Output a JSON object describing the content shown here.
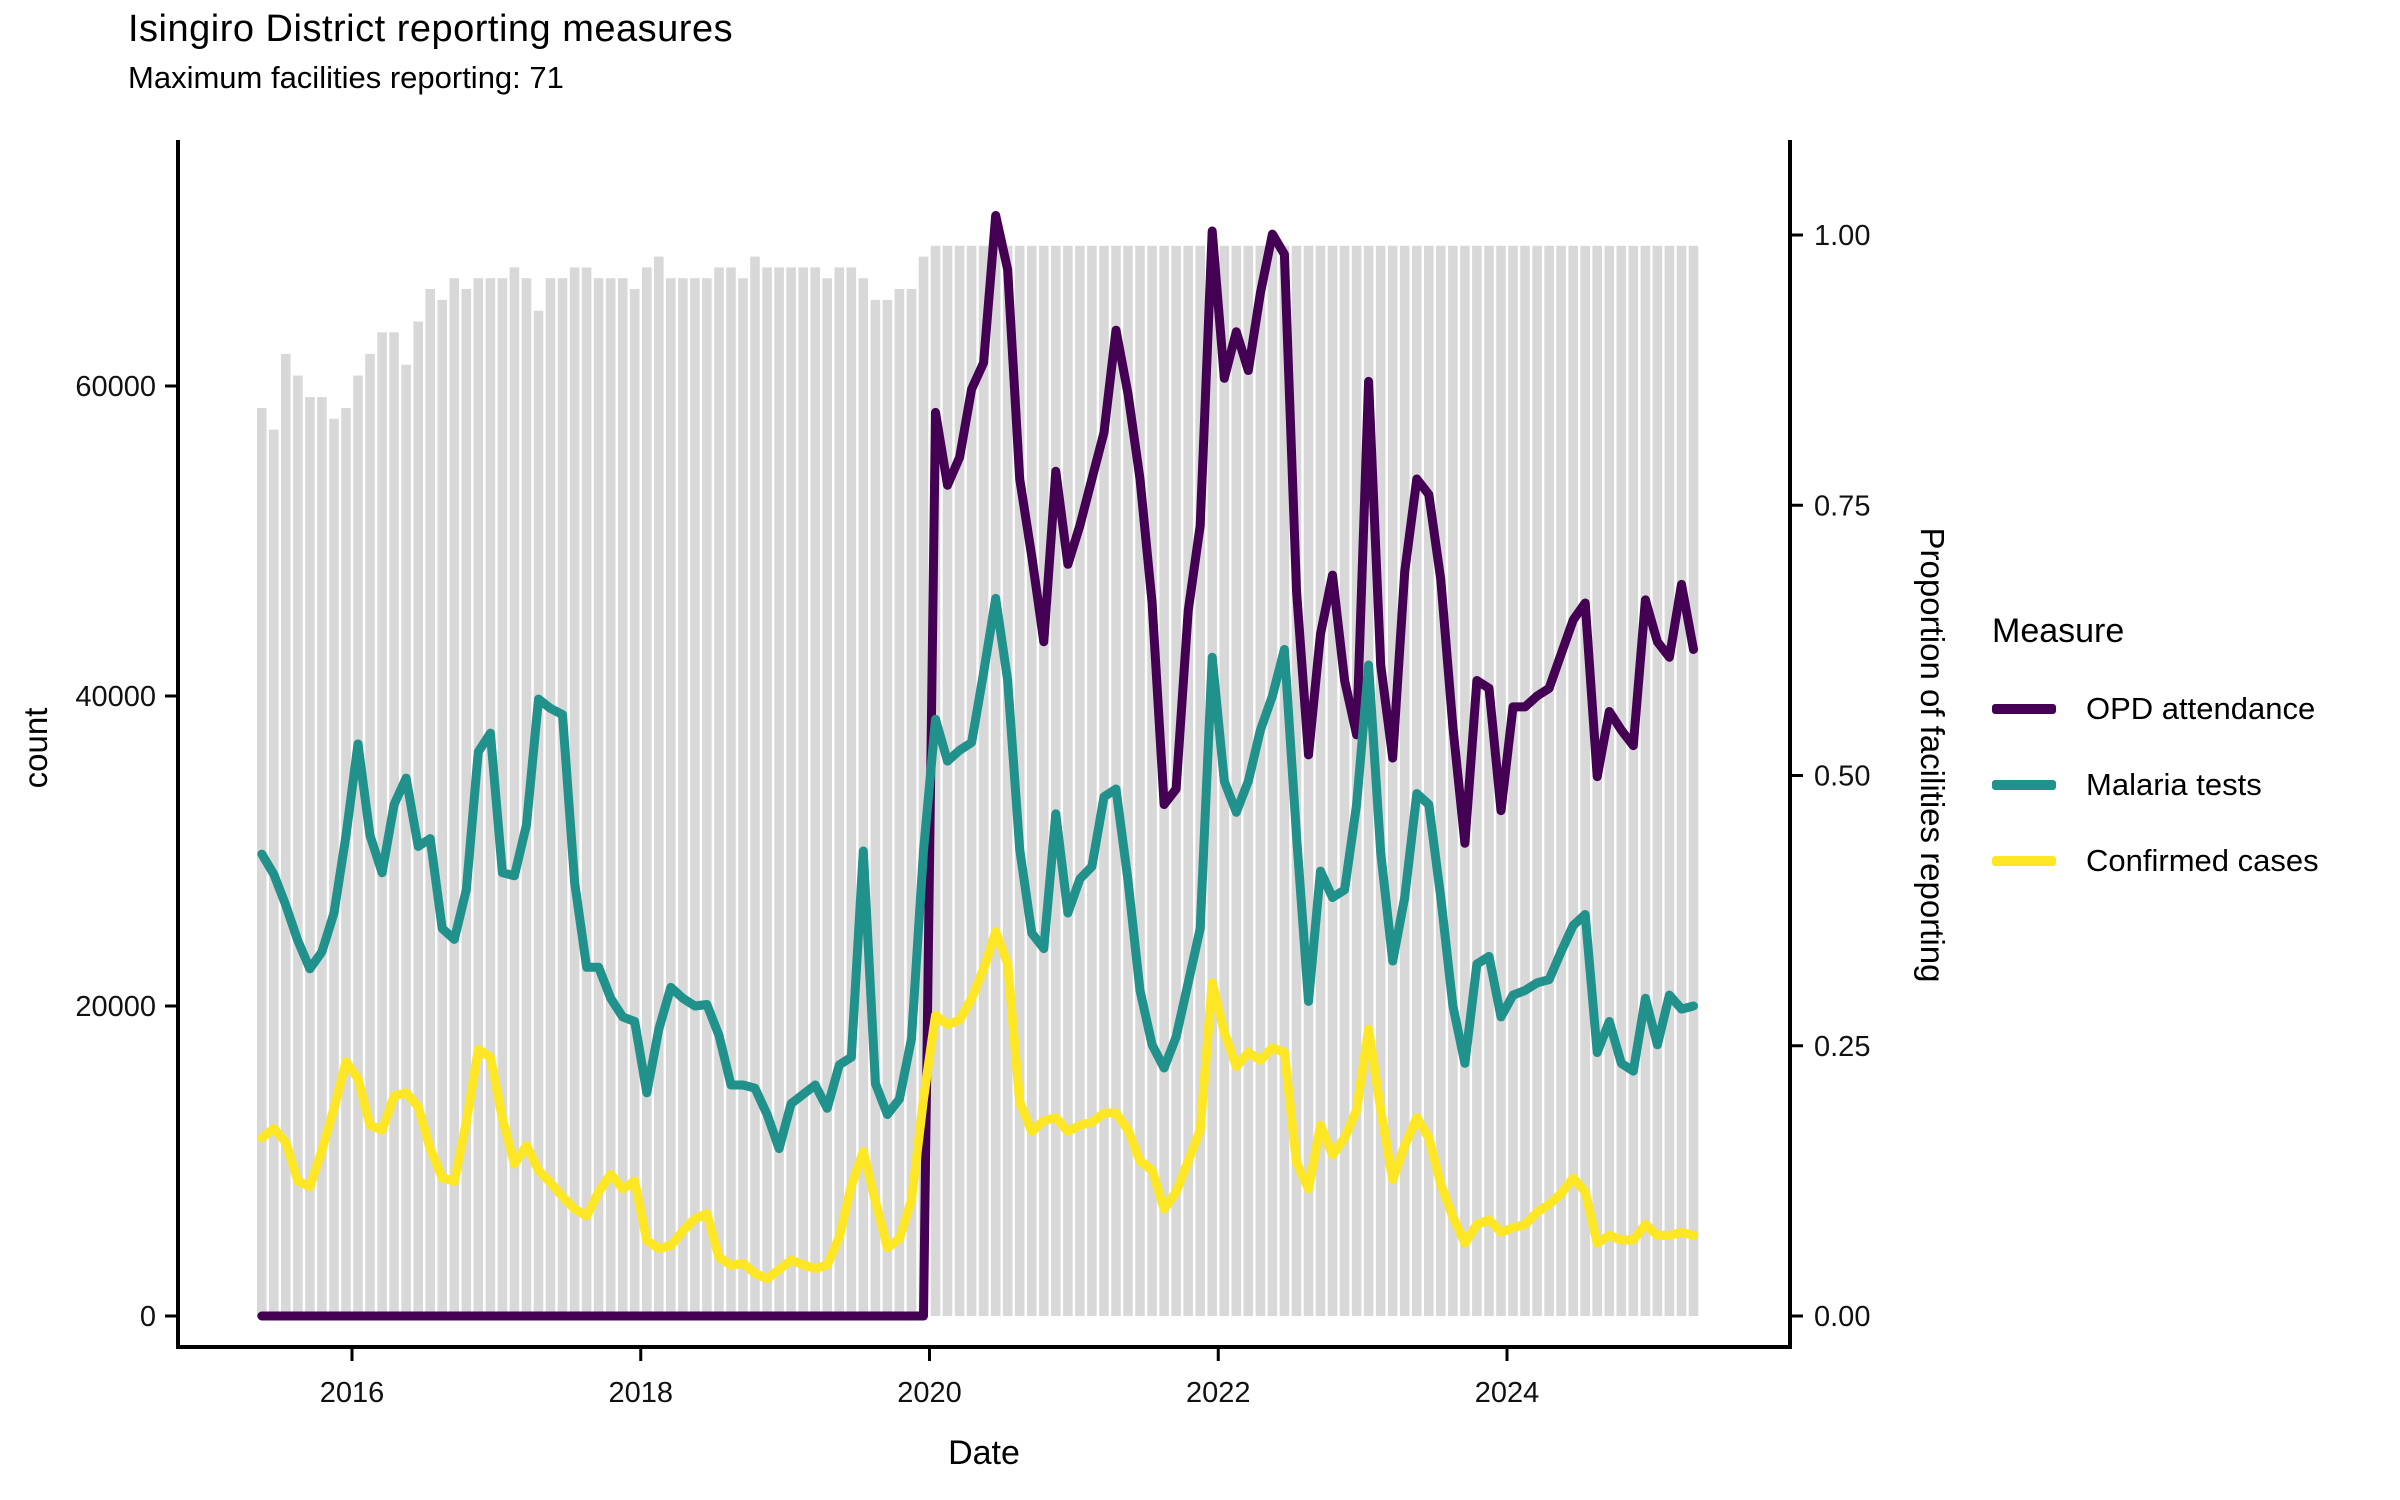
{
  "header": {
    "title": "Isingiro District reporting measures",
    "subtitle": "Maximum facilities reporting: 71"
  },
  "legend": {
    "title": "Measure",
    "items": [
      {
        "label": "OPD attendance",
        "color": "#440154"
      },
      {
        "label": "Malaria tests",
        "color": "#21918c"
      },
      {
        "label": "Confirmed cases",
        "color": "#fde725"
      }
    ]
  },
  "chart_data": {
    "type": "bar+line",
    "title": "Isingiro District reporting measures",
    "subtitle": "Maximum facilities reporting: 71",
    "max_facilities_reporting": 71,
    "xlabel": "Date",
    "ylabel_left": "count",
    "ylabel_right": "Proportion of facilities reporting",
    "x_ticks": [
      "2016",
      "2018",
      "2020",
      "2022",
      "2024"
    ],
    "y_ticks_left": [
      "0",
      "20000",
      "40000",
      "60000"
    ],
    "y_ticks_right": [
      "0.00",
      "0.25",
      "0.50",
      "0.75",
      "1.00"
    ],
    "ylim_left": [
      0,
      71500
    ],
    "ylim_right": [
      0,
      1.0
    ],
    "grid": false,
    "legend_position": "right",
    "months": [
      "2015-05",
      "2015-06",
      "2015-07",
      "2015-08",
      "2015-09",
      "2015-10",
      "2015-11",
      "2015-12",
      "2016-01",
      "2016-02",
      "2016-03",
      "2016-04",
      "2016-05",
      "2016-06",
      "2016-07",
      "2016-08",
      "2016-09",
      "2016-10",
      "2016-11",
      "2016-12",
      "2017-01",
      "2017-02",
      "2017-03",
      "2017-04",
      "2017-05",
      "2017-06",
      "2017-07",
      "2017-08",
      "2017-09",
      "2017-10",
      "2017-11",
      "2017-12",
      "2018-01",
      "2018-02",
      "2018-03",
      "2018-04",
      "2018-05",
      "2018-06",
      "2018-07",
      "2018-08",
      "2018-09",
      "2018-10",
      "2018-11",
      "2018-12",
      "2019-01",
      "2019-02",
      "2019-03",
      "2019-04",
      "2019-05",
      "2019-06",
      "2019-07",
      "2019-08",
      "2019-09",
      "2019-10",
      "2019-11",
      "2019-12",
      "2020-01",
      "2020-02",
      "2020-03",
      "2020-04",
      "2020-05",
      "2020-06",
      "2020-07",
      "2020-08",
      "2020-09",
      "2020-10",
      "2020-11",
      "2020-12",
      "2021-01",
      "2021-02",
      "2021-03",
      "2021-04",
      "2021-05",
      "2021-06",
      "2021-07",
      "2021-08",
      "2021-09",
      "2021-10",
      "2021-11",
      "2021-12",
      "2022-01",
      "2022-02",
      "2022-03",
      "2022-04",
      "2022-05",
      "2022-06",
      "2022-07",
      "2022-08",
      "2022-09",
      "2022-10",
      "2022-11",
      "2022-12",
      "2023-01",
      "2023-02",
      "2023-03",
      "2023-04",
      "2023-05",
      "2023-06",
      "2023-07",
      "2023-08",
      "2023-09",
      "2023-10",
      "2023-11",
      "2023-12",
      "2024-01",
      "2024-02",
      "2024-03",
      "2024-04",
      "2024-05",
      "2024-06",
      "2024-07",
      "2024-08",
      "2024-09",
      "2024-10",
      "2024-11",
      "2024-12",
      "2025-01",
      "2025-02",
      "2025-03",
      "2025-04"
    ],
    "bars": {
      "name": "Proportion of facilities reporting",
      "axis": "right",
      "color": "#d8d8d8",
      "values": [
        0.84,
        0.82,
        0.89,
        0.87,
        0.85,
        0.85,
        0.83,
        0.84,
        0.87,
        0.89,
        0.91,
        0.91,
        0.88,
        0.92,
        0.95,
        0.94,
        0.96,
        0.95,
        0.96,
        0.96,
        0.96,
        0.97,
        0.96,
        0.93,
        0.96,
        0.96,
        0.97,
        0.97,
        0.96,
        0.96,
        0.96,
        0.95,
        0.97,
        0.98,
        0.96,
        0.96,
        0.96,
        0.96,
        0.97,
        0.97,
        0.96,
        0.98,
        0.97,
        0.97,
        0.97,
        0.97,
        0.97,
        0.96,
        0.97,
        0.97,
        0.96,
        0.94,
        0.94,
        0.95,
        0.95,
        0.98,
        0.99,
        0.99,
        0.99,
        0.99,
        0.99,
        1.0,
        0.99,
        0.99,
        0.99,
        0.99,
        0.99,
        0.99,
        0.99,
        0.99,
        0.99,
        0.99,
        0.99,
        0.99,
        0.99,
        0.99,
        0.99,
        0.99,
        0.99,
        0.99,
        0.99,
        0.99,
        0.99,
        0.99,
        0.99,
        0.99,
        0.99,
        0.99,
        0.99,
        0.99,
        0.99,
        0.99,
        0.99,
        0.99,
        0.99,
        0.99,
        0.99,
        0.99,
        0.99,
        0.99,
        0.99,
        0.99,
        0.99,
        0.99,
        0.99,
        0.99,
        0.99,
        0.99,
        0.99,
        0.99,
        0.99,
        0.99,
        0.99,
        0.99,
        0.99,
        0.99,
        0.99,
        0.99,
        0.99,
        0.99
      ]
    },
    "series": [
      {
        "name": "OPD attendance",
        "axis": "left",
        "color": "#440154",
        "values": [
          0,
          0,
          0,
          0,
          0,
          0,
          0,
          0,
          0,
          0,
          0,
          0,
          0,
          0,
          0,
          0,
          0,
          0,
          0,
          0,
          0,
          0,
          0,
          0,
          0,
          0,
          0,
          0,
          0,
          0,
          0,
          0,
          0,
          0,
          0,
          0,
          0,
          0,
          0,
          0,
          0,
          0,
          0,
          0,
          0,
          0,
          0,
          0,
          0,
          0,
          0,
          0,
          0,
          0,
          0,
          0,
          58300,
          53600,
          55400,
          59800,
          61500,
          71000,
          67500,
          54000,
          49000,
          43500,
          54500,
          48500,
          51000,
          54000,
          57000,
          63600,
          59500,
          54000,
          46000,
          33000,
          34000,
          45500,
          51000,
          70000,
          60500,
          63500,
          61000,
          66000,
          69800,
          68500,
          46800,
          36200,
          44000,
          47800,
          41000,
          37500,
          60300,
          42000,
          36000,
          48000,
          54000,
          53000,
          47500,
          38000,
          30500,
          41000,
          40500,
          32600,
          39300,
          39300,
          40000,
          40500,
          42700,
          44900,
          46000,
          34800,
          39000,
          37800,
          36800,
          46200,
          43500,
          42500,
          47200,
          43000
        ]
      },
      {
        "name": "Malaria tests",
        "axis": "left",
        "color": "#21918c",
        "values": [
          29800,
          28500,
          26500,
          24200,
          22400,
          23500,
          26000,
          31000,
          36900,
          31000,
          28600,
          33000,
          34700,
          30300,
          30800,
          25000,
          24300,
          27500,
          36400,
          37600,
          28600,
          28400,
          31700,
          39800,
          39200,
          38800,
          28000,
          22500,
          22500,
          20500,
          19300,
          19000,
          14400,
          18500,
          21200,
          20500,
          20000,
          20100,
          18100,
          14900,
          14900,
          14700,
          13000,
          10800,
          13700,
          14300,
          14900,
          13400,
          16200,
          16700,
          30000,
          15000,
          13000,
          14000,
          17900,
          30000,
          38500,
          35800,
          36500,
          37000,
          41500,
          46300,
          41000,
          30100,
          24700,
          23700,
          32400,
          26000,
          28200,
          29000,
          33500,
          34000,
          28100,
          21000,
          17500,
          16000,
          18000,
          21500,
          25000,
          42500,
          34500,
          32500,
          34500,
          37800,
          40000,
          43000,
          31000,
          20300,
          28700,
          27000,
          27500,
          33000,
          42000,
          29900,
          22900,
          27000,
          33700,
          33000,
          27000,
          20000,
          16300,
          22700,
          23200,
          19300,
          20700,
          21000,
          21500,
          21700,
          23500,
          25200,
          25900,
          17000,
          19000,
          16300,
          15800,
          20500,
          17500,
          20700,
          19800,
          20000
        ]
      },
      {
        "name": "Confirmed cases",
        "axis": "left",
        "color": "#fde725",
        "values": [
          11500,
          12100,
          11200,
          8700,
          8350,
          10700,
          13400,
          16400,
          15300,
          12300,
          12000,
          14200,
          14400,
          13500,
          10800,
          8900,
          8700,
          12500,
          17200,
          16700,
          12750,
          9800,
          11000,
          9400,
          8600,
          7700,
          6900,
          6450,
          8000,
          9150,
          8200,
          8700,
          4870,
          4350,
          4550,
          5500,
          6280,
          6600,
          3780,
          3270,
          3400,
          2750,
          2400,
          3000,
          3600,
          3300,
          3050,
          3300,
          5100,
          8400,
          10600,
          7400,
          4400,
          5000,
          7500,
          14000,
          19400,
          18800,
          19100,
          20500,
          22400,
          24800,
          22700,
          13800,
          11900,
          12600,
          12800,
          11900,
          12300,
          12500,
          13100,
          13100,
          12000,
          10000,
          9400,
          6900,
          8000,
          10000,
          12000,
          21500,
          18300,
          16100,
          17000,
          16500,
          17300,
          17000,
          9900,
          8200,
          12300,
          10400,
          11500,
          13300,
          18500,
          13300,
          8800,
          11000,
          12800,
          11500,
          8500,
          6400,
          4700,
          5900,
          6200,
          5400,
          5700,
          5900,
          6700,
          7200,
          7900,
          8900,
          8000,
          4700,
          5200,
          4900,
          4900,
          5900,
          5200,
          5200,
          5400,
          5200
        ]
      }
    ]
  }
}
